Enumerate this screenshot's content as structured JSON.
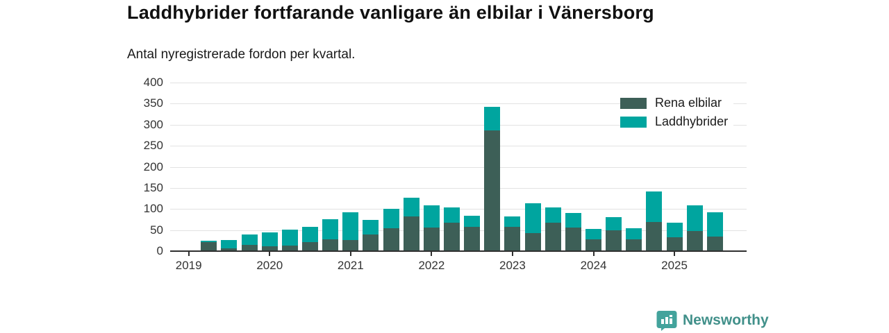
{
  "title": "Laddhybrider fortfarande vanligare än elbilar i Vänersborg",
  "subtitle": "Antal nyregistrerade fordon per kvartal.",
  "colors": {
    "elbilar": "#3d5f57",
    "laddhybrider": "#00a59f",
    "axis": "#2f2f2f",
    "gridline": "#e2e2e2",
    "brand_teal": "#41908a",
    "brand_icon": "#43a39c"
  },
  "legend": {
    "items": [
      {
        "label": "Rena elbilar",
        "color": "#3d5f57"
      },
      {
        "label": "Laddhybrider",
        "color": "#00a59f"
      }
    ]
  },
  "footer": {
    "brand": "Newsworthy"
  },
  "chart_data": {
    "type": "bar",
    "stacked": true,
    "title": "Laddhybrider fortfarande vanligare än elbilar i Vänersborg",
    "subtitle": "Antal nyregistrerade fordon per kvartal.",
    "xlabel": "",
    "ylabel": "Antal nyregistrerade fordon",
    "ylim": [
      0,
      400
    ],
    "yticks": [
      0,
      50,
      100,
      150,
      200,
      250,
      300,
      350,
      400
    ],
    "year_ticks": [
      "2019",
      "2020",
      "2021",
      "2022",
      "2023",
      "2024",
      "2025"
    ],
    "grid": true,
    "legend_position": "top-right",
    "x": [
      "2019 Q2",
      "2019 Q3",
      "2019 Q4",
      "2020 Q1",
      "2020 Q2",
      "2020 Q3",
      "2020 Q4",
      "2021 Q1",
      "2021 Q2",
      "2021 Q3",
      "2021 Q4",
      "2022 Q1",
      "2022 Q2",
      "2022 Q3",
      "2022 Q4",
      "2023 Q1",
      "2023 Q2",
      "2023 Q3",
      "2023 Q4",
      "2024 Q1",
      "2024 Q2",
      "2024 Q3",
      "2024 Q4",
      "2025 Q1",
      "2025 Q2",
      "2025 Q3"
    ],
    "series": [
      {
        "name": "Rena elbilar",
        "color": "#3d5f57",
        "values": [
          22,
          7,
          15,
          11,
          13,
          22,
          28,
          26,
          40,
          54,
          82,
          56,
          67,
          57,
          287,
          58,
          43,
          68,
          56,
          28,
          50,
          28,
          69,
          33,
          47,
          35
        ]
      },
      {
        "name": "Laddhybrider",
        "color": "#00a59f",
        "values": [
          2,
          19,
          25,
          33,
          38,
          36,
          48,
          66,
          34,
          47,
          45,
          52,
          37,
          27,
          55,
          24,
          70,
          36,
          34,
          25,
          30,
          27,
          73,
          35,
          61,
          57
        ]
      }
    ]
  }
}
